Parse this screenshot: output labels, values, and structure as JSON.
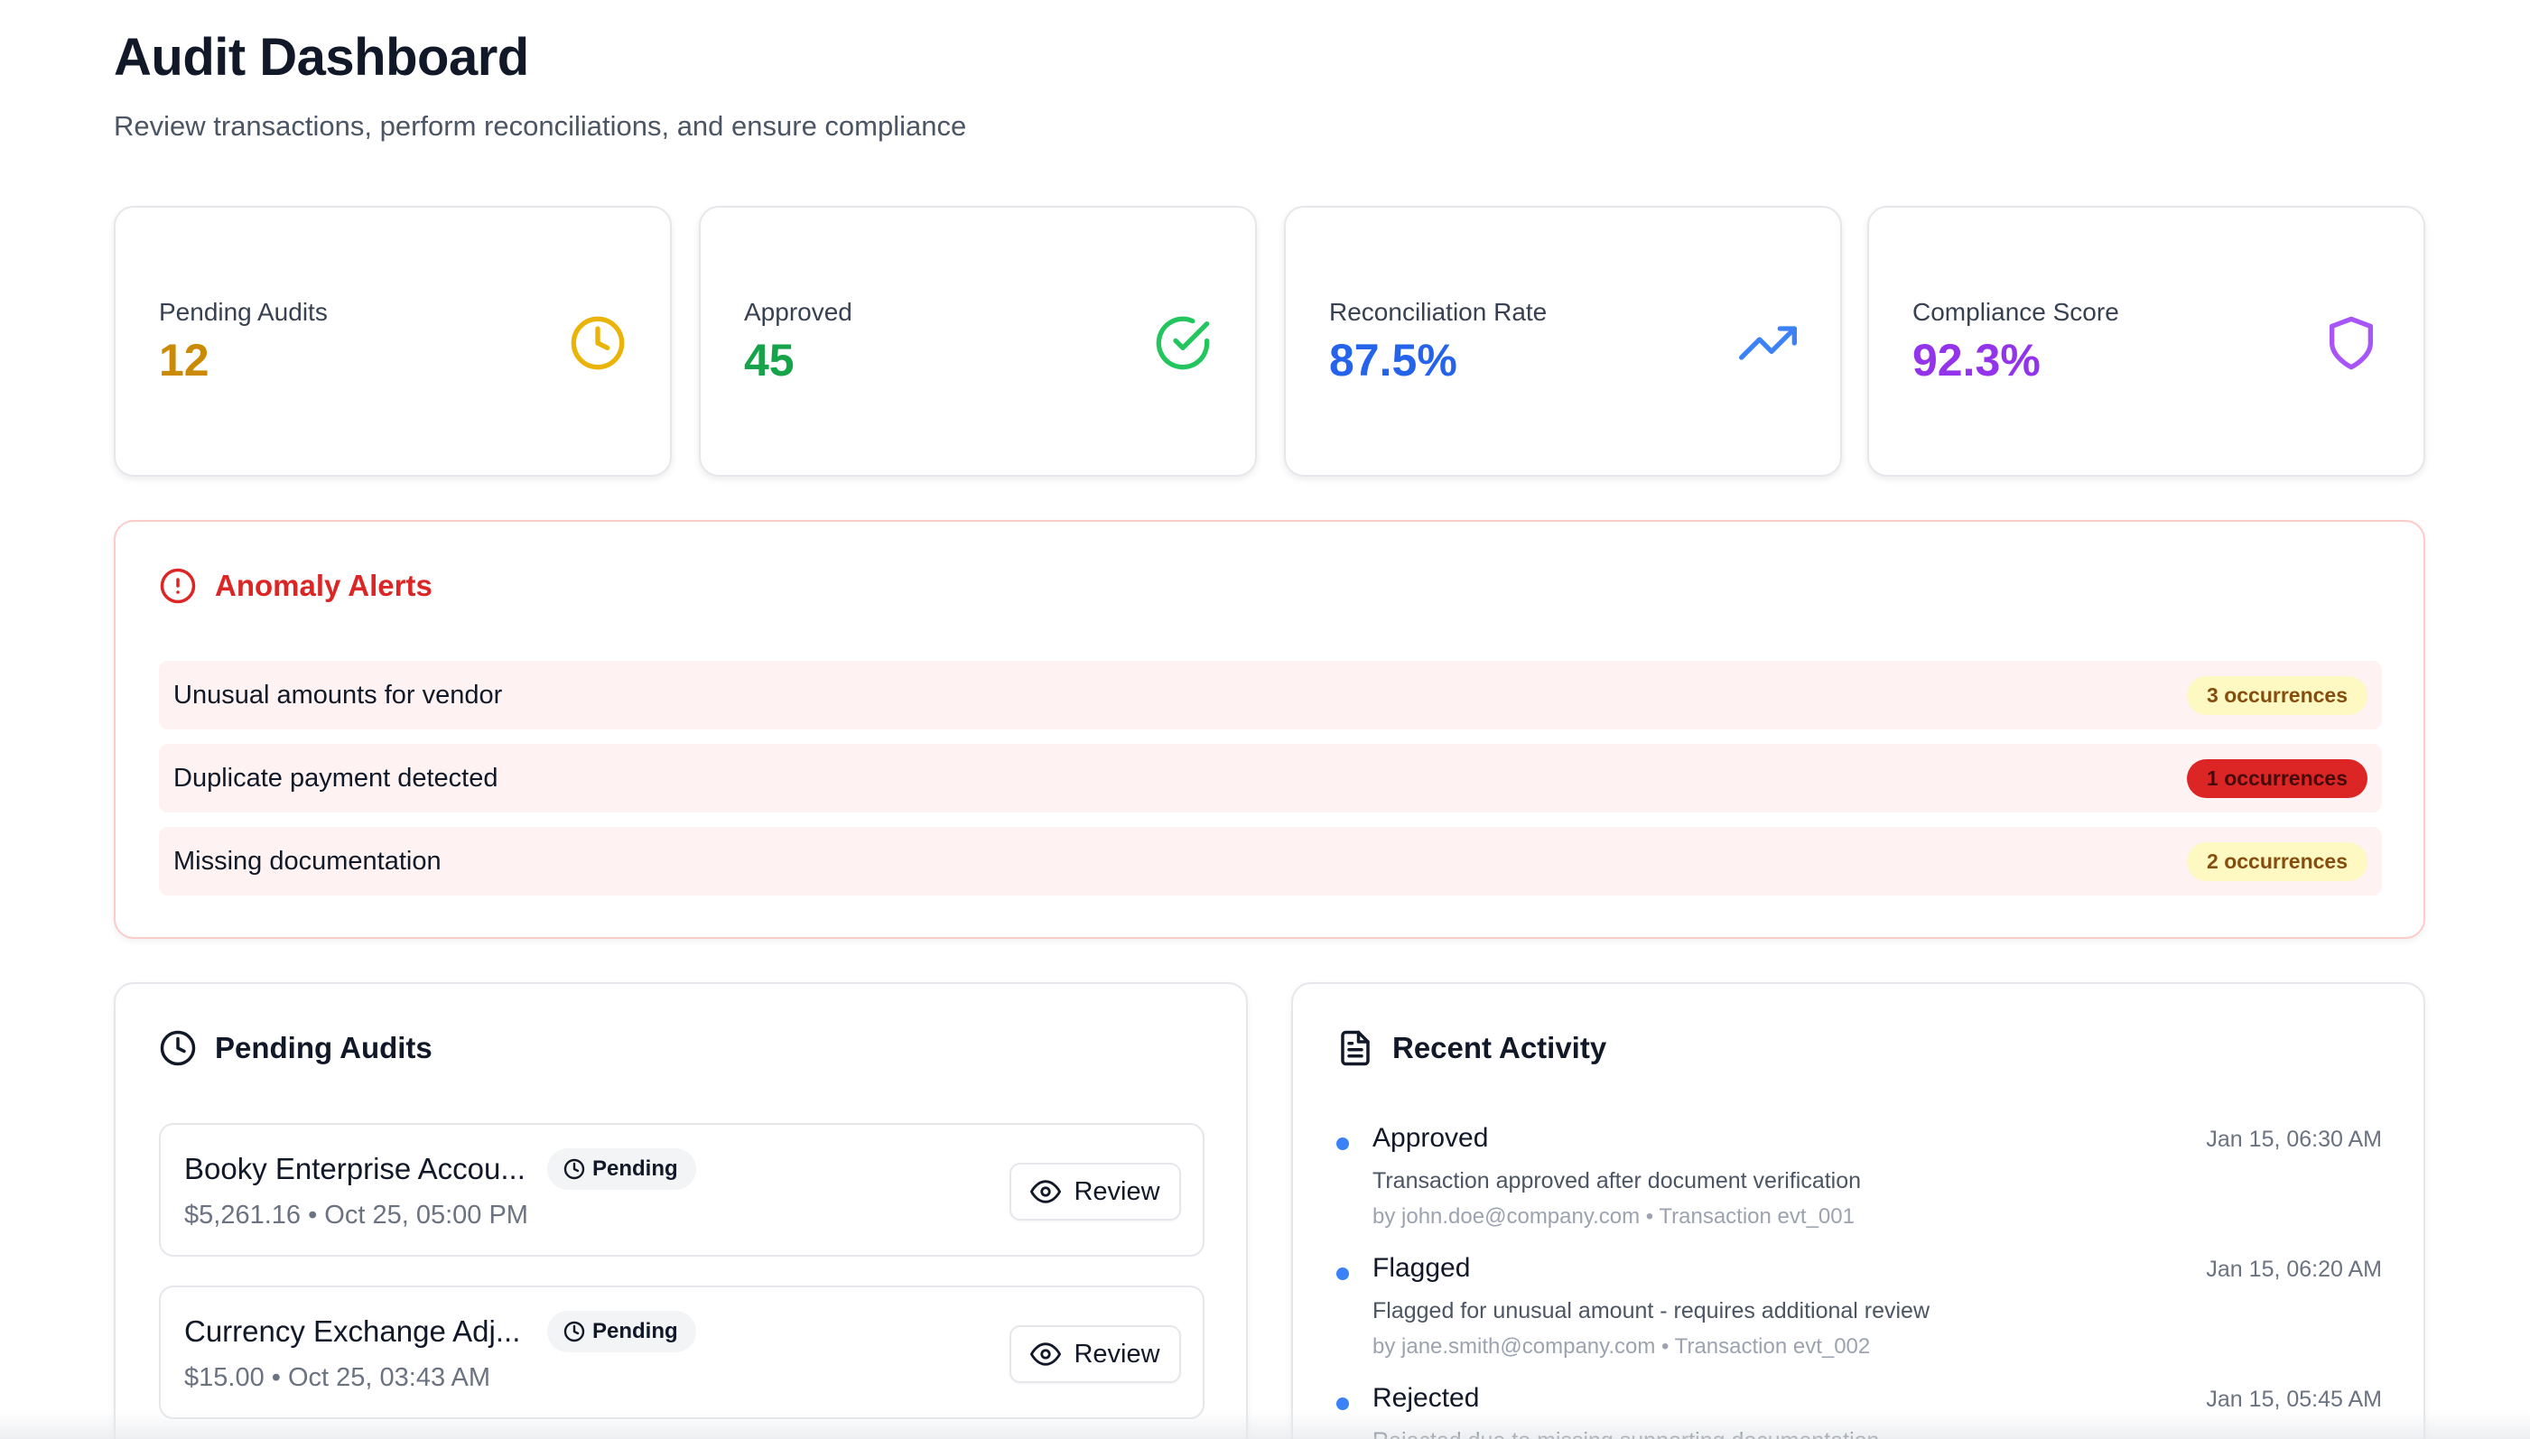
{
  "header": {
    "title": "Audit Dashboard",
    "subtitle": "Review transactions, perform reconciliations, and ensure compliance"
  },
  "stats": [
    {
      "label": "Pending Audits",
      "value": "12",
      "color": "#ca8a04",
      "icon": "clock-icon"
    },
    {
      "label": "Approved",
      "value": "45",
      "color": "#16a34a",
      "icon": "check-circle-icon"
    },
    {
      "label": "Reconciliation Rate",
      "value": "87.5%",
      "color": "#2563eb",
      "icon": "trending-up-icon"
    },
    {
      "label": "Compliance Score",
      "value": "92.3%",
      "color": "#9333ea",
      "icon": "shield-icon"
    }
  ],
  "anomalies": {
    "title": "Anomaly Alerts",
    "items": [
      {
        "text": "Unusual amounts for vendor",
        "badge": "3 occurrences",
        "severity": "medium"
      },
      {
        "text": "Duplicate payment detected",
        "badge": "1 occurrences",
        "severity": "high"
      },
      {
        "text": "Missing documentation",
        "badge": "2 occurrences",
        "severity": "medium"
      }
    ]
  },
  "pending": {
    "title": "Pending Audits",
    "review_label": "Review",
    "items": [
      {
        "name": "Booky Enterprise Accou...",
        "status": "Pending",
        "meta": "$5,261.16 • Oct 25, 05:00 PM"
      },
      {
        "name": "Currency Exchange Adj...",
        "status": "Pending",
        "meta": "$15.00 • Oct 25, 03:43 AM"
      }
    ]
  },
  "activity": {
    "title": "Recent Activity",
    "items": [
      {
        "title": "Approved",
        "time": "Jan 15, 06:30 AM",
        "desc": "Transaction approved after document verification",
        "by": "by john.doe@company.com • Transaction evt_001"
      },
      {
        "title": "Flagged",
        "time": "Jan 15, 06:20 AM",
        "desc": "Flagged for unusual amount - requires additional review",
        "by": "by jane.smith@company.com • Transaction evt_002"
      },
      {
        "title": "Rejected",
        "time": "Jan 15, 05:45 AM",
        "desc": "Rejected due to missing supporting documentation",
        "by": ""
      }
    ]
  }
}
